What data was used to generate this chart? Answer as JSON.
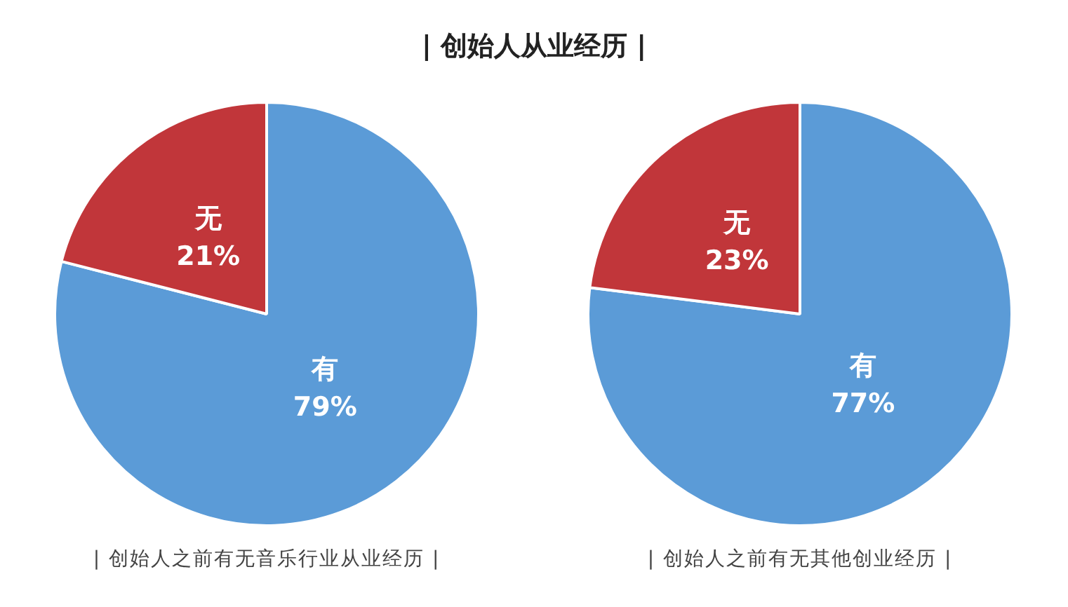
{
  "chart_data": [
    {
      "type": "pie",
      "title": "| 创始人从业经历 |",
      "categories": [
        "有",
        "无"
      ],
      "values": [
        79,
        21
      ],
      "value_labels": [
        "79%",
        "21%"
      ],
      "colors": [
        "#5b9bd7",
        "#c1363a"
      ],
      "annotations": [
        "| 创始人之前有无音乐行业从业经历 |"
      ]
    },
    {
      "type": "pie",
      "categories": [
        "有",
        "无"
      ],
      "values": [
        77,
        23
      ],
      "value_labels": [
        "77%",
        "23%"
      ],
      "colors": [
        "#5b9bd7",
        "#c1363a"
      ],
      "annotations": [
        "| 创始人之前有无其他创业经历 |"
      ]
    }
  ]
}
